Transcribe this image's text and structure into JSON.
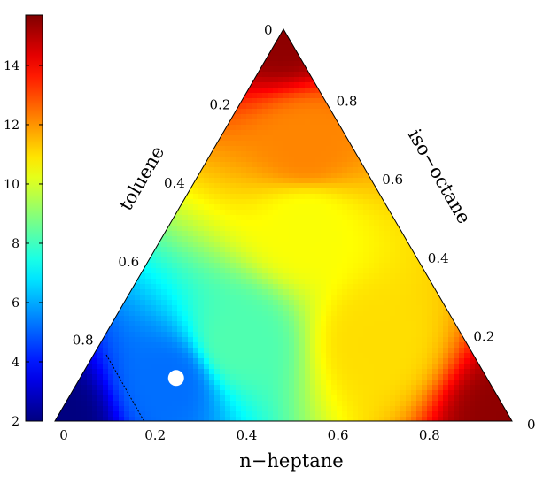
{
  "chart_data": {
    "type": "heatmap",
    "subtype": "ternary",
    "axes": {
      "bottom": {
        "label": "n−heptane",
        "ticks": [
          "0",
          "0.2",
          "0.4",
          "0.6",
          "0.8"
        ]
      },
      "left": {
        "label": "toluene",
        "ticks": [
          "0.2",
          "0.4",
          "0.6",
          "0.8"
        ]
      },
      "right": {
        "label": "iso−octane",
        "ticks": [
          "0.2",
          "0.4",
          "0.6",
          "0.8"
        ]
      },
      "apex_label": "0",
      "right_corner_label": "0"
    },
    "colorbar": {
      "range": [
        2,
        15.7
      ],
      "ticks": [
        "2",
        "4",
        "6",
        "8",
        "10",
        "12",
        "14"
      ],
      "colormap": "jet"
    },
    "field_samples": [
      {
        "toluene": 1.0,
        "iso_octane": 0.0,
        "n_heptane": 0.0,
        "value": 2.0
      },
      {
        "toluene": 0.7,
        "iso_octane": 0.1,
        "n_heptane": 0.2,
        "value": 5.2
      },
      {
        "toluene": 0.5,
        "iso_octane": 0.2,
        "n_heptane": 0.3,
        "value": 8.2
      },
      {
        "toluene": 0.2,
        "iso_octane": 0.5,
        "n_heptane": 0.3,
        "value": 10.5
      },
      {
        "toluene": 0.1,
        "iso_octane": 0.7,
        "n_heptane": 0.2,
        "value": 12.2
      },
      {
        "toluene": 0.2,
        "iso_octane": 0.2,
        "n_heptane": 0.6,
        "value": 11.0
      },
      {
        "toluene": 0.0,
        "iso_octane": 1.0,
        "n_heptane": 0.0,
        "value": 15.5
      },
      {
        "toluene": 0.0,
        "iso_octane": 0.0,
        "n_heptane": 1.0,
        "value": 15.5
      }
    ],
    "marker": {
      "toluene": 0.68,
      "iso_octane": 0.11,
      "n_heptane": 0.21,
      "color": "#ffffff"
    }
  }
}
